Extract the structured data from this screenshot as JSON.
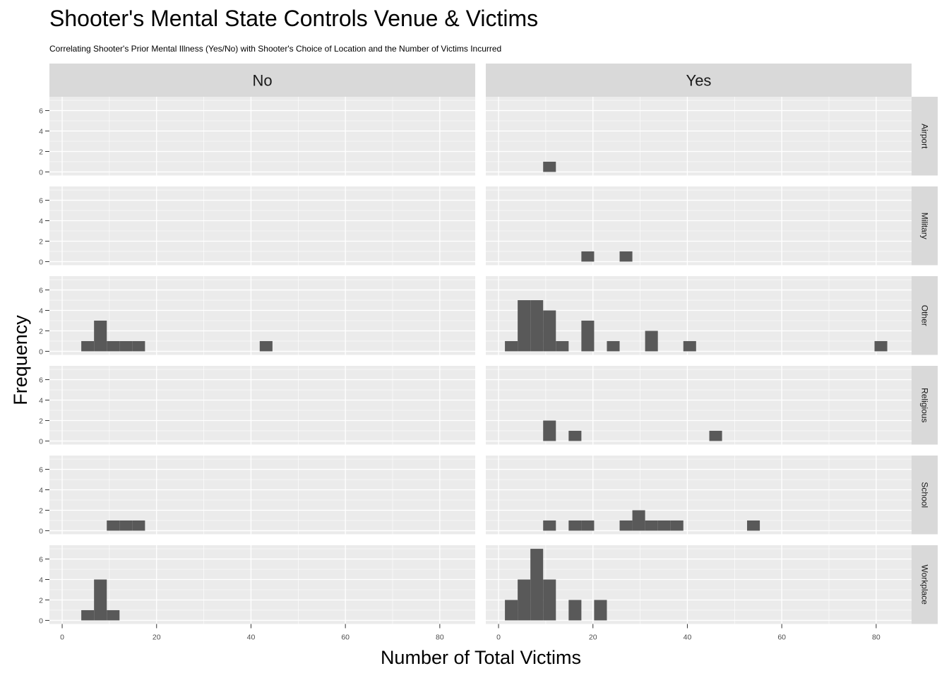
{
  "title": "Shooter's Mental State Controls Venue & Victims",
  "subtitle": "Correlating Shooter's Prior Mental Illness (Yes/No) with Shooter's Choice of Location and the Number of Victims Incurred",
  "colors": {
    "panel_bg": "#ebebeb",
    "grid": "#ffffff",
    "strip_bg": "#d9d9d9",
    "bar": "#595959",
    "tick": "#4d4d4d"
  },
  "chart_data": {
    "type": "bar",
    "subtype": "faceted-histogram",
    "bin_width": 2.7,
    "xlabel": "Number of Total Victims",
    "ylabel": "Frequency",
    "xlim": [
      -2.7,
      87.5
    ],
    "ylim": [
      -0.35,
      7.35
    ],
    "x_ticks": [
      "0",
      "20",
      "40",
      "60",
      "80"
    ],
    "y_ticks": [
      "0",
      "2",
      "4",
      "6"
    ],
    "grid": true,
    "facet_cols": [
      "No",
      "Yes"
    ],
    "facet_rows": [
      "Airport",
      "Military",
      "Other",
      "Religious",
      "School",
      "Workplace"
    ],
    "facets": [
      {
        "row": "Airport",
        "col": "No",
        "bins": []
      },
      {
        "row": "Airport",
        "col": "Yes",
        "bins": [
          {
            "x": 10.8,
            "count": 1
          }
        ]
      },
      {
        "row": "Military",
        "col": "No",
        "bins": []
      },
      {
        "row": "Military",
        "col": "Yes",
        "bins": [
          {
            "x": 18.9,
            "count": 1
          },
          {
            "x": 27.0,
            "count": 1
          }
        ]
      },
      {
        "row": "Other",
        "col": "No",
        "bins": [
          {
            "x": 5.4,
            "count": 1
          },
          {
            "x": 8.1,
            "count": 3
          },
          {
            "x": 10.8,
            "count": 1
          },
          {
            "x": 13.5,
            "count": 1
          },
          {
            "x": 16.2,
            "count": 1
          },
          {
            "x": 43.2,
            "count": 1
          }
        ]
      },
      {
        "row": "Other",
        "col": "Yes",
        "bins": [
          {
            "x": 2.7,
            "count": 1
          },
          {
            "x": 5.4,
            "count": 5
          },
          {
            "x": 8.1,
            "count": 5
          },
          {
            "x": 10.8,
            "count": 4
          },
          {
            "x": 13.5,
            "count": 1
          },
          {
            "x": 18.9,
            "count": 3
          },
          {
            "x": 24.3,
            "count": 1
          },
          {
            "x": 32.4,
            "count": 2
          },
          {
            "x": 40.5,
            "count": 1
          },
          {
            "x": 81.0,
            "count": 1
          }
        ]
      },
      {
        "row": "Religious",
        "col": "No",
        "bins": []
      },
      {
        "row": "Religious",
        "col": "Yes",
        "bins": [
          {
            "x": 10.8,
            "count": 2
          },
          {
            "x": 16.2,
            "count": 1
          },
          {
            "x": 46.0,
            "count": 1
          }
        ]
      },
      {
        "row": "School",
        "col": "No",
        "bins": [
          {
            "x": 10.8,
            "count": 1
          },
          {
            "x": 13.5,
            "count": 1
          },
          {
            "x": 16.2,
            "count": 1
          }
        ]
      },
      {
        "row": "School",
        "col": "Yes",
        "bins": [
          {
            "x": 10.8,
            "count": 1
          },
          {
            "x": 16.2,
            "count": 1
          },
          {
            "x": 18.9,
            "count": 1
          },
          {
            "x": 27.0,
            "count": 1
          },
          {
            "x": 29.7,
            "count": 2
          },
          {
            "x": 32.4,
            "count": 1
          },
          {
            "x": 35.1,
            "count": 1
          },
          {
            "x": 37.8,
            "count": 1
          },
          {
            "x": 54.0,
            "count": 1
          }
        ]
      },
      {
        "row": "Workplace",
        "col": "No",
        "bins": [
          {
            "x": 5.4,
            "count": 1
          },
          {
            "x": 8.1,
            "count": 4
          },
          {
            "x": 10.8,
            "count": 1
          }
        ]
      },
      {
        "row": "Workplace",
        "col": "Yes",
        "bins": [
          {
            "x": 2.7,
            "count": 2
          },
          {
            "x": 5.4,
            "count": 4
          },
          {
            "x": 8.1,
            "count": 7
          },
          {
            "x": 10.8,
            "count": 4
          },
          {
            "x": 16.2,
            "count": 2
          },
          {
            "x": 21.6,
            "count": 2
          }
        ]
      }
    ]
  }
}
